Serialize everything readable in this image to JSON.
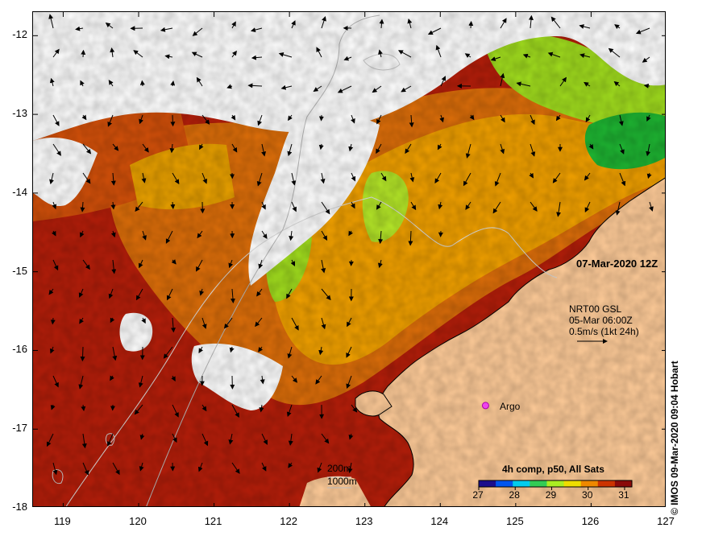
{
  "map": {
    "lon_range": [
      118.6,
      127.0
    ],
    "lat_range": [
      -18.0,
      -11.7
    ],
    "x_ticks": [
      "119",
      "120",
      "121",
      "122",
      "123",
      "124",
      "125",
      "126",
      "127"
    ],
    "y_ticks": [
      "-12",
      "-13",
      "-14",
      "-15",
      "-16",
      "-17",
      "-18"
    ]
  },
  "date_label": "07-Mar-2020 12Z",
  "current_info": {
    "line1": "NRT00 GSL",
    "line2": "05-Mar 06:00Z",
    "line3": "0.5m/s (1kt 24h)"
  },
  "argo": {
    "label": "Argo",
    "lon": 124.6,
    "lat": -16.7,
    "color": "#ee44ee"
  },
  "bathymetry_legend": {
    "contour1": "200m",
    "contour2": "1000m"
  },
  "colorbar": {
    "title": "4h comp, p50, All Sats",
    "ticks": [
      "27",
      "28",
      "29",
      "30",
      "31"
    ],
    "range": [
      27,
      31.2
    ],
    "colors": [
      "#1c0e8c",
      "#0055ee",
      "#00ccee",
      "#33cc55",
      "#aaee22",
      "#eedd00",
      "#ee8800",
      "#cc3300",
      "#8a0a0a"
    ]
  },
  "credit": "© IMOS 09-Mar-2020 09:04 Hobart",
  "colors": {
    "land": "#ffcc99",
    "cloud": "#ffffff",
    "sst_hot": "#b41e0a",
    "sst_warm": "#dc6e0a",
    "sst_mid": "#f0a000",
    "sst_cool": "#a0dc1e",
    "sst_cold": "#1eb432",
    "bathy_line": "#c8c8c8",
    "vector": "#000000"
  }
}
